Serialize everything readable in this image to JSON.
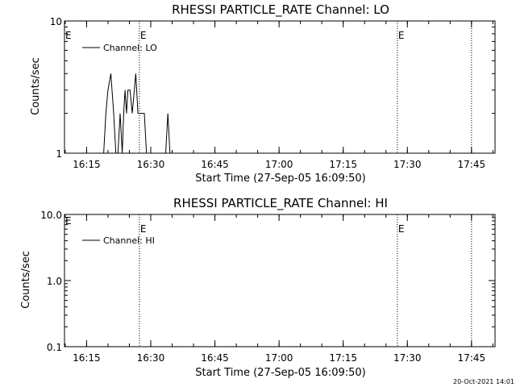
{
  "footer": {
    "timestamp": "20-Oct-2021 14:01"
  },
  "chart_data": [
    {
      "type": "line",
      "title": "RHESSI PARTICLE_RATE Channel: LO",
      "xlabel": "Start Time (27-Sep-05 16:09:50)",
      "ylabel": "Counts/sec",
      "yscale": "log",
      "ylim": [
        1,
        10
      ],
      "xlim": [
        "16:09:50",
        "17:50:30"
      ],
      "y_tick_labels": [
        "1",
        "10"
      ],
      "y_tick_values": [
        1,
        10
      ],
      "x_tick_labels": [
        "16:15",
        "16:30",
        "16:45",
        "17:00",
        "17:15",
        "17:30",
        "17:45"
      ],
      "x_tick_values": [
        "16:15",
        "16:30",
        "16:45",
        "17:00",
        "17:15",
        "17:30",
        "17:45"
      ],
      "legend": {
        "label": "Channel: LO",
        "position": "top-left"
      },
      "event_markers": [
        {
          "time": "16:27:20",
          "label": "E"
        },
        {
          "time": "17:27:40",
          "label": "E"
        },
        {
          "time": "17:45:00",
          "label": ""
        }
      ],
      "corner_marker": "E",
      "series": [
        {
          "name": "Channel: LO",
          "x": [
            "16:19:00",
            "16:19:30",
            "16:20:00",
            "16:20:40",
            "16:21:20",
            "16:21:50",
            "16:22:20",
            "16:22:50",
            "16:23:20",
            "16:23:40",
            "16:24:00",
            "16:24:20",
            "16:24:40",
            "16:25:10",
            "16:25:40",
            "16:26:10",
            "16:26:30",
            "16:27:00",
            "16:27:30",
            "16:28:00",
            "16:28:30",
            "16:29:00",
            "16:29:30",
            "16:30:00",
            "16:30:30",
            "16:31:00",
            "16:31:30",
            "16:32:00",
            "16:32:30",
            "16:33:00",
            "16:33:30",
            "16:34:00",
            "16:34:30",
            "16:35:00"
          ],
          "y": [
            1,
            2,
            3,
            4,
            2,
            1,
            1,
            2,
            1,
            2,
            3,
            2,
            3,
            3,
            2,
            3,
            4,
            2,
            2,
            2,
            2,
            1,
            1,
            1,
            1,
            1,
            1,
            1,
            1,
            1,
            1,
            2,
            1,
            1
          ]
        }
      ]
    },
    {
      "type": "line",
      "title": "RHESSI PARTICLE_RATE Channel: HI",
      "xlabel": "Start Time (27-Sep-05 16:09:50)",
      "ylabel": "Counts/sec",
      "yscale": "log",
      "ylim": [
        0.1,
        10
      ],
      "xlim": [
        "16:09:50",
        "17:50:30"
      ],
      "y_tick_labels": [
        "0.1",
        "1.0",
        "10.0"
      ],
      "y_tick_values": [
        0.1,
        1,
        10
      ],
      "x_tick_labels": [
        "16:15",
        "16:30",
        "16:45",
        "17:00",
        "17:15",
        "17:30",
        "17:45"
      ],
      "x_tick_values": [
        "16:15",
        "16:30",
        "16:45",
        "17:00",
        "17:15",
        "17:30",
        "17:45"
      ],
      "legend": {
        "label": "Channel: HI",
        "position": "top-left"
      },
      "event_markers": [
        {
          "time": "16:27:20",
          "label": "E"
        },
        {
          "time": "17:27:40",
          "label": "E"
        },
        {
          "time": "17:45:00",
          "label": ""
        }
      ],
      "corner_marker": "E",
      "series": [
        {
          "name": "Channel: HI",
          "x": [],
          "y": []
        }
      ]
    }
  ]
}
